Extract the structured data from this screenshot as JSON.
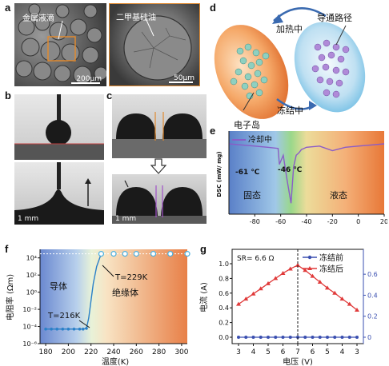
{
  "panels": {
    "a": "a",
    "b": "b",
    "c": "c",
    "d": "d",
    "e": "e",
    "f": "f",
    "g": "g"
  },
  "panel_a": {
    "label_left": "金属液滴",
    "label_right": "二甲基硅油",
    "scale_left": "200μm",
    "scale_right": "50μm"
  },
  "panel_bc": {
    "scale_b": "1 mm",
    "scale_c": "1 mm"
  },
  "panel_d": {
    "heating": "加热中",
    "conduction": "导通路径",
    "freezing": "冻结中",
    "electron_island": "电子岛"
  },
  "panel_e": {
    "legend": "冷却中",
    "ylabel": "DSC (mW/ mg)",
    "peak1": "-61 ℃",
    "peak2": "-46 ℃",
    "solid": "固态",
    "liquid": "液态",
    "xticks": [
      "-80",
      "-60",
      "-40",
      "-20",
      "0",
      "20"
    ]
  },
  "panel_f": {
    "ylabel": "电阻率 (Ωm)",
    "xlabel": "温度(K)",
    "conductor": "导体",
    "insulator": "绝缘体",
    "t1": "T=216K",
    "t2": "T=229K",
    "xticks": [
      "180",
      "200",
      "220",
      "240",
      "260",
      "280",
      "300"
    ],
    "yticks": [
      "10⁴",
      "10²",
      "10⁰",
      "10⁻²",
      "10⁻⁴",
      "10⁻⁶"
    ]
  },
  "panel_g": {
    "sr": "SR= 6.6 Ω",
    "legend_before": "冻结前",
    "legend_after": "冻结后",
    "ylabel": "电流 (A)",
    "xlabel": "电压 (V)",
    "xticks": [
      "3",
      "4",
      "5",
      "6",
      "7",
      "6",
      "5",
      "4",
      "3"
    ],
    "yticks_left": [
      "0.0",
      "0.2",
      "0.4",
      "0.6",
      "0.8",
      "1.0"
    ],
    "yticks_right": [
      "0",
      "0.2",
      "0.4",
      "0.6"
    ]
  },
  "colors": {
    "red": "#e03a3a",
    "blue": "#3a4fb0",
    "purple": "#8a5cc8",
    "orange": "#f08a3c",
    "cyan": "#5ab4e0"
  },
  "chart_data": [
    {
      "type": "line",
      "title": "",
      "xlabel": "",
      "ylabel": "DSC (mW/ mg)",
      "xlim": [
        -100,
        20
      ],
      "series": [
        {
          "name": "冷却中",
          "x": [
            -100,
            -90,
            -80,
            -70,
            -62,
            -61,
            -58,
            -55,
            -52,
            -50,
            -48,
            -46,
            -44,
            -40,
            -30,
            -20,
            -10,
            0,
            10,
            20
          ],
          "y": [
            0.0,
            -0.05,
            -0.1,
            -0.15,
            -0.2,
            -0.9,
            -0.5,
            -1.6,
            -2.6,
            -1.0,
            -0.5,
            -0.4,
            -0.25,
            -0.15,
            -0.1,
            -0.3,
            -0.15,
            -0.1,
            -0.05,
            0.0
          ]
        }
      ]
    },
    {
      "type": "line",
      "title": "",
      "xlabel": "温度(K)",
      "ylabel": "电阻率 (Ωm)",
      "xlim": [
        175,
        305
      ],
      "yscale": "log",
      "ylim": [
        1e-06,
        100000.0
      ],
      "series": [
        {
          "name": "",
          "x": [
            180,
            185,
            190,
            195,
            200,
            205,
            210,
            213,
            216,
            218,
            220,
            222,
            225,
            229
          ],
          "y": [
            5e-05,
            5e-05,
            5e-05,
            5e-05,
            5e-05,
            5e-05,
            5e-05,
            5e-05,
            6e-05,
            0.001,
            0.1,
            10.0,
            1000.0,
            30000.0
          ]
        },
        {
          "name": "",
          "x": [
            229,
            240,
            250,
            260,
            275,
            290,
            305
          ],
          "y": [
            30000.0,
            30000.0,
            30000.0,
            30000.0,
            30000.0,
            30000.0,
            30000.0
          ]
        }
      ]
    },
    {
      "type": "line",
      "title": "",
      "xlabel": "电压 (V)",
      "ylabel": "电流 (A)",
      "categories": [
        "3",
        "3.5",
        "4",
        "4.5",
        "5",
        "5.5",
        "6",
        "6.5",
        "7",
        "6.5",
        "6",
        "5.5",
        "5",
        "4.5",
        "4",
        "3.5",
        "3"
      ],
      "series": [
        {
          "name": "冻结前",
          "values": [
            0.0,
            0.0,
            0.0,
            0.0,
            0.0,
            0.0,
            0.0,
            0.0,
            0.0,
            0.0,
            0.0,
            0.0,
            0.0,
            0.0,
            0.0,
            0.0,
            0.0
          ]
        },
        {
          "name": "冻结后",
          "values": [
            0.45,
            0.52,
            0.59,
            0.66,
            0.73,
            0.8,
            0.87,
            0.93,
            0.98,
            0.91,
            0.83,
            0.75,
            0.67,
            0.6,
            0.52,
            0.45,
            0.37
          ]
        }
      ]
    }
  ]
}
